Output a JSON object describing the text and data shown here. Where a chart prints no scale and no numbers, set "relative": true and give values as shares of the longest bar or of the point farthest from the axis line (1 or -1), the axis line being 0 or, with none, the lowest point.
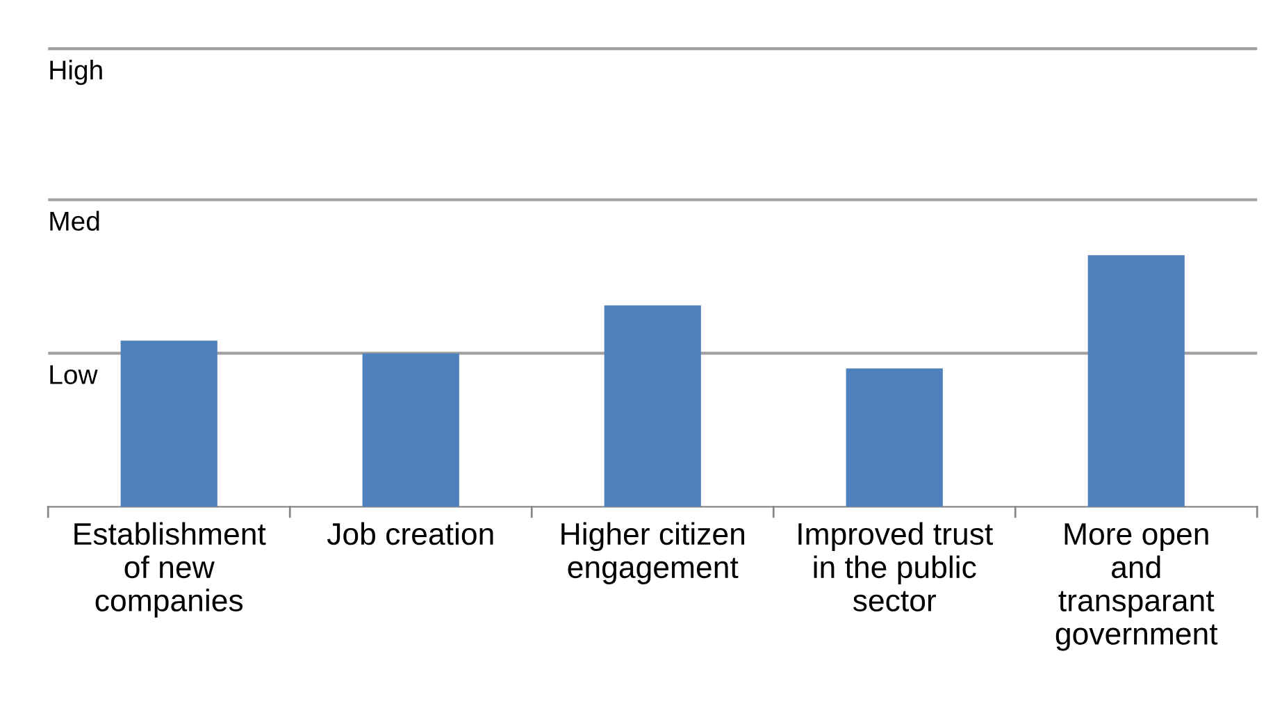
{
  "chart_data": {
    "type": "bar",
    "categories": [
      "Establishment\nof new\ncompanies",
      "Job creation",
      "Higher citizen\nengagement",
      "Improved trust\nin the public\nsector",
      "More open\nand\ntransparant\ngovernment"
    ],
    "values": [
      0.66,
      0.61,
      0.8,
      0.55,
      1
    ],
    "color": "#4f81bd",
    "relative": true,
    "ref_lines": [
      {
        "axis": "y",
        "value": 0.61,
        "label": "Low",
        "color": "#a0a0a0"
      },
      {
        "axis": "y",
        "value": 1.22,
        "label": "Med",
        "color": "#a0a0a0"
      },
      {
        "axis": "y",
        "value": 1.82,
        "label": "High",
        "color": "#a0a0a0"
      }
    ]
  }
}
